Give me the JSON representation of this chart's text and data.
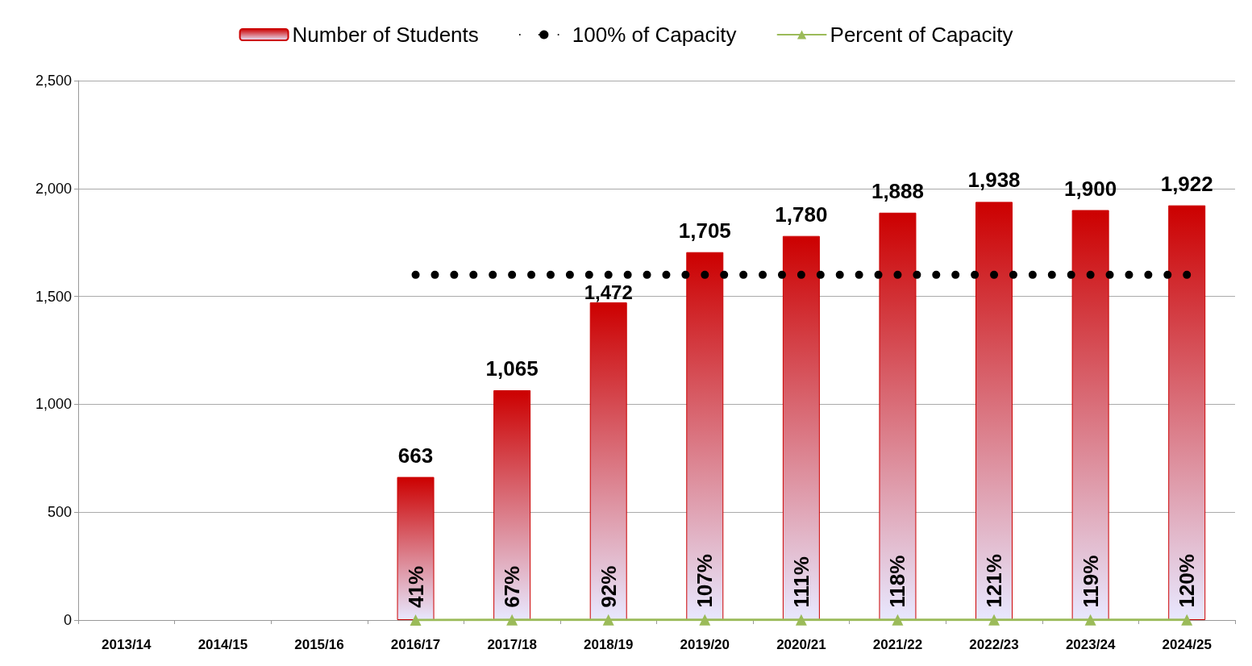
{
  "chart_data": {
    "type": "bar",
    "categories": [
      "2013/14",
      "2014/15",
      "2015/16",
      "2016/17",
      "2017/18",
      "2018/19",
      "2019/20",
      "2020/21",
      "2021/22",
      "2022/23",
      "2023/24",
      "2024/25"
    ],
    "series": [
      {
        "name": "Number of Students",
        "color": "#cc0000",
        "values": [
          null,
          null,
          null,
          663,
          1065,
          1472,
          1705,
          1780,
          1888,
          1938,
          1900,
          1922
        ],
        "value_labels": [
          null,
          null,
          null,
          "663",
          "1,065",
          "1,472",
          "1,705",
          "1,780",
          "1,888",
          "1,938",
          "1,900",
          "1,922"
        ]
      },
      {
        "name": "100% of Capacity",
        "type": "line",
        "color": "#000000",
        "line_style": "dotted",
        "marker": "none",
        "values": [
          null,
          null,
          null,
          1600,
          1600,
          1600,
          1600,
          1600,
          1600,
          1600,
          1600,
          1600
        ]
      },
      {
        "name": "Percent of Capacity",
        "type": "line",
        "color": "#9bbb59",
        "line_style": "solid",
        "marker": "triangle",
        "values": [
          null,
          null,
          null,
          0.41,
          0.67,
          0.92,
          1.07,
          1.11,
          1.18,
          1.21,
          1.19,
          1.2
        ],
        "value_labels": [
          null,
          null,
          null,
          "41%",
          "67%",
          "92%",
          "107%",
          "111%",
          "118%",
          "121%",
          "119%",
          "120%"
        ]
      }
    ],
    "ylim": [
      0,
      2500
    ],
    "yticks": [
      {
        "value": 0,
        "label": "0"
      },
      {
        "value": 500,
        "label": "500"
      },
      {
        "value": 1000,
        "label": "1,000"
      },
      {
        "value": 1500,
        "label": "1,500"
      },
      {
        "value": 2000,
        "label": "2,000"
      },
      {
        "value": 2500,
        "label": "2,500"
      }
    ],
    "grid": "y",
    "legend": "top"
  }
}
